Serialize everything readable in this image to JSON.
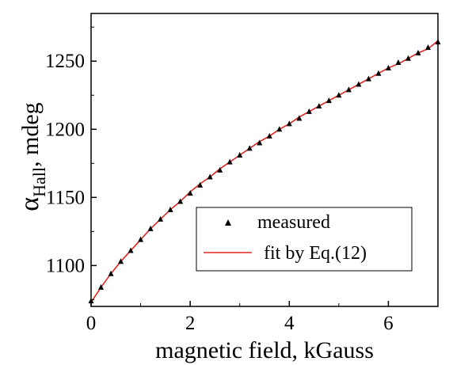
{
  "chart_data": {
    "type": "scatter",
    "xlabel": "magnetic field, kGauss",
    "ylabel": {
      "symbol": "α",
      "subscript": "Hall",
      "suffix": ", mdeg"
    },
    "xlim": [
      0,
      7
    ],
    "ylim": [
      1070,
      1285
    ],
    "x_ticks": [
      0,
      2,
      4,
      6
    ],
    "y_ticks": [
      1100,
      1150,
      1200,
      1250
    ],
    "grid": false,
    "legend_position": "bottom-right",
    "series": [
      {
        "name": "measured",
        "marker": "triangle",
        "color": "#000000",
        "x": [
          0.0,
          0.2,
          0.4,
          0.6,
          0.8,
          1.0,
          1.2,
          1.4,
          1.6,
          1.8,
          2.0,
          2.2,
          2.4,
          2.6,
          2.8,
          3.0,
          3.2,
          3.4,
          3.6,
          3.8,
          4.0,
          4.2,
          4.4,
          4.6,
          4.8,
          5.0,
          5.2,
          5.4,
          5.6,
          5.8,
          6.0,
          6.2,
          6.4,
          6.6,
          6.8,
          7.0
        ],
        "y": [
          1074,
          1084,
          1094,
          1103,
          1111,
          1119,
          1127,
          1134,
          1141,
          1147,
          1153,
          1159,
          1165,
          1170,
          1176,
          1181,
          1186,
          1190,
          1195,
          1200,
          1204,
          1208,
          1213,
          1217,
          1221,
          1225,
          1229,
          1233,
          1237,
          1241,
          1245,
          1249,
          1252,
          1256,
          1260,
          1264
        ]
      },
      {
        "name": "fit by Eq.(12)",
        "line": true,
        "color": "#e0261f",
        "x": [
          0.0,
          0.2,
          0.4,
          0.6,
          0.8,
          1.0,
          1.2,
          1.4,
          1.6,
          1.8,
          2.0,
          2.2,
          2.4,
          2.6,
          2.8,
          3.0,
          3.2,
          3.4,
          3.6,
          3.8,
          4.0,
          4.2,
          4.4,
          4.6,
          4.8,
          5.0,
          5.2,
          5.4,
          5.6,
          5.8,
          6.0,
          6.2,
          6.4,
          6.6,
          6.8,
          7.0
        ],
        "y": [
          1073,
          1084,
          1094,
          1103,
          1111,
          1119,
          1127,
          1134,
          1141,
          1147,
          1154,
          1160,
          1165,
          1171,
          1176,
          1181,
          1186,
          1191,
          1195,
          1200,
          1204,
          1209,
          1213,
          1217,
          1221,
          1225,
          1229,
          1233,
          1237,
          1241,
          1245,
          1248,
          1252,
          1256,
          1259,
          1265
        ]
      }
    ]
  }
}
